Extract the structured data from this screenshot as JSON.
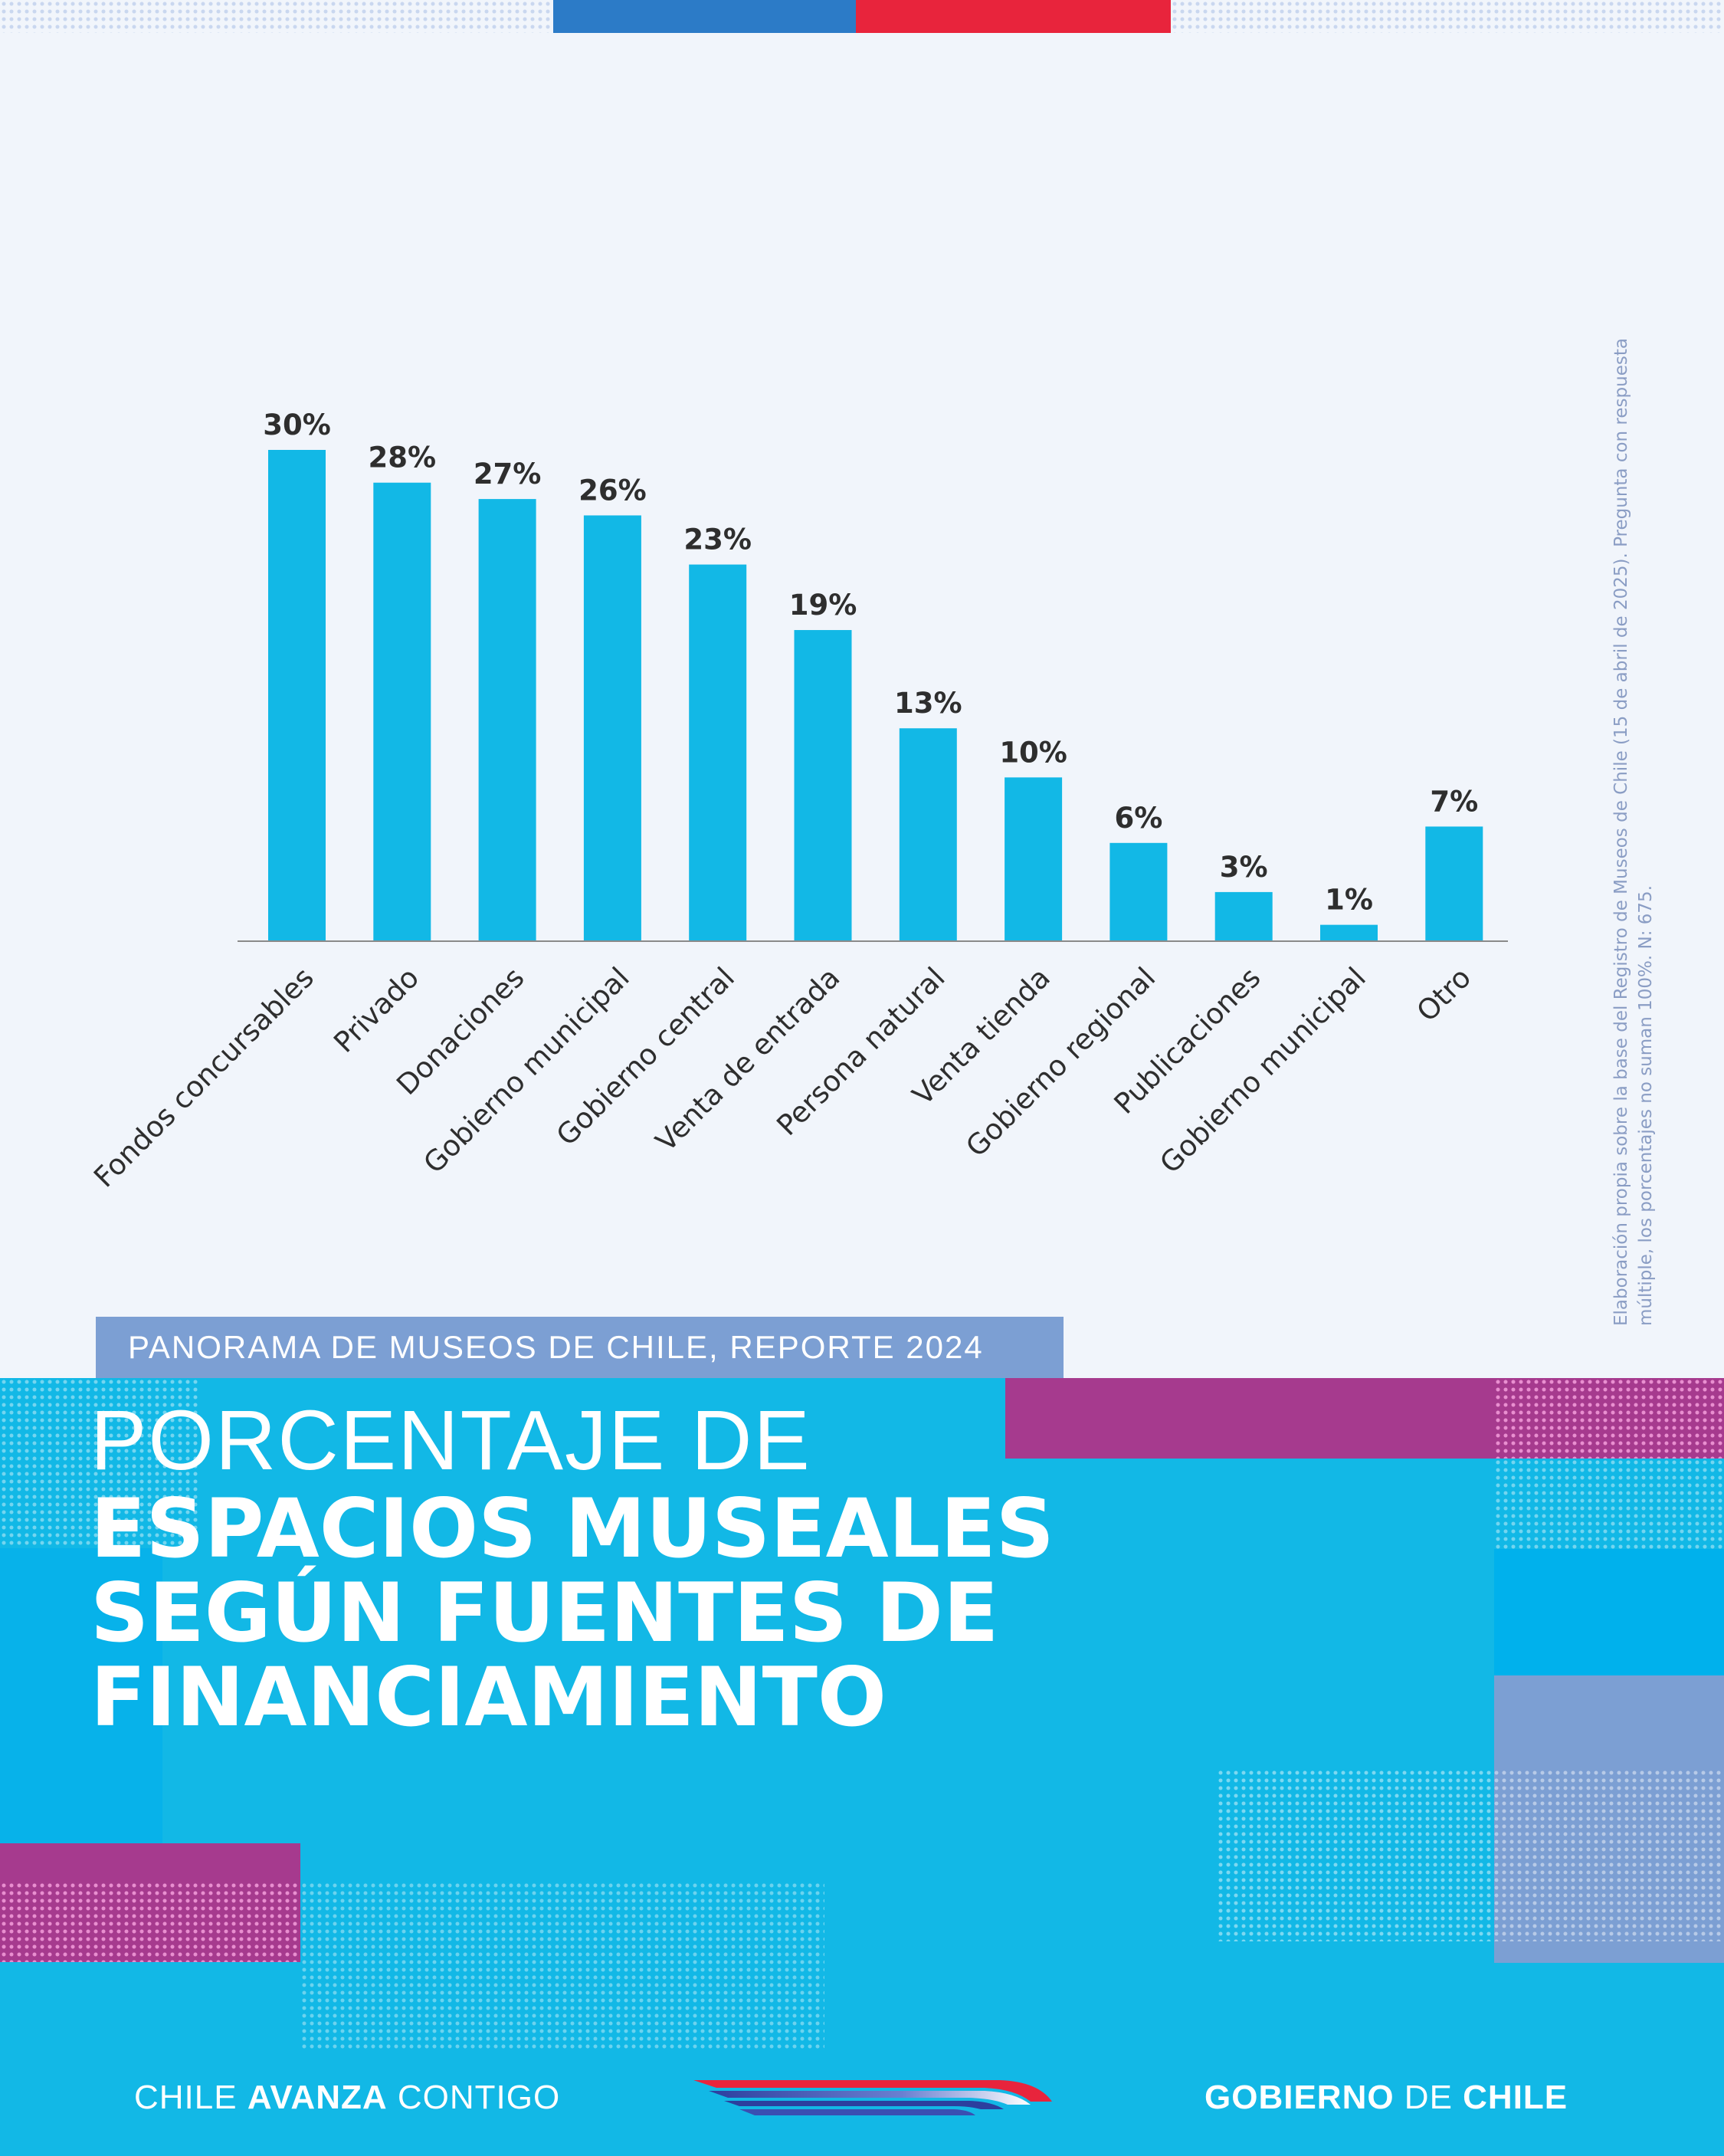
{
  "chart_data": {
    "type": "bar",
    "categories": [
      "Fondos concursables",
      "Privado",
      "Donaciones",
      "Gobierno municipal",
      "Gobierno central",
      "Venta de entrada",
      "Persona natural",
      "Venta tienda",
      "Gobierno regional",
      "Publicaciones",
      "Gobierno municipal",
      "Otro"
    ],
    "values": [
      30,
      28,
      27,
      26,
      23,
      19,
      13,
      10,
      6,
      3,
      1,
      7
    ],
    "value_labels": [
      "30%",
      "28%",
      "27%",
      "26%",
      "23%",
      "19%",
      "13%",
      "10%",
      "6%",
      "3%",
      "1%",
      "7%"
    ],
    "ylim": [
      0,
      30
    ],
    "grid": false,
    "bar_color": "#12b8e6"
  },
  "note": "Elaboración propia sobre la base del Registro de Museos de Chile (15 de abril de 2025). Pregunta con respuesta múltiple, los porcentajes no suman 100%. N: 675.",
  "report_tag": "PANORAMA DE MUSEOS DE CHILE, REPORTE 2024",
  "title": {
    "line1": "PORCENTAJE DE",
    "line2": "ESPACIOS MUSEALES",
    "line3": "SEGÚN FUENTES DE",
    "line4": "FINANCIAMIENTO"
  },
  "footer": {
    "left_a": "CHILE ",
    "left_b": "AVANZA",
    "left_c": " CONTIGO",
    "right_a": "GOBIERNO",
    "right_b": " DE ",
    "right_c": "CHILE"
  },
  "colors": {
    "background": "#f1f5fb",
    "cyan": "#12b8e6",
    "deep_cyan": "#00b1ec",
    "magenta": "#a63a8e",
    "periwinkle": "#7c9fd3",
    "flag_blue": "#2c7bc7",
    "flag_red": "#e8243c",
    "text": "#2e2e2e"
  }
}
